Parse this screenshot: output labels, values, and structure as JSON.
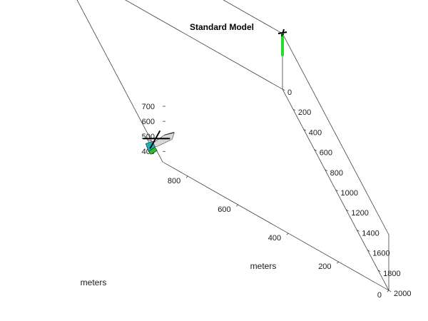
{
  "chart_data": {
    "type": "line3d",
    "title": "Standard Model",
    "xlabel": "meters",
    "ylabel": "meters",
    "zlabel": "",
    "xlim": [
      0,
      2000
    ],
    "ylim": [
      0,
      900
    ],
    "zlim": [
      330,
      700
    ],
    "x_ticks": [
      "0",
      "200",
      "400",
      "600",
      "800",
      "1000",
      "1200",
      "1400",
      "1600",
      "1800",
      "2000"
    ],
    "y_ticks": [
      "0",
      "200",
      "400",
      "600",
      "800"
    ],
    "z_ticks": [
      "400",
      "500",
      "600",
      "700"
    ],
    "grid": false,
    "series": [
      {
        "color": "#22dd22",
        "marker": "square",
        "points": [
          {
            "x": 0,
            "y": 0,
            "z": 700
          },
          {
            "x": 0,
            "y": 0,
            "z": 690
          },
          {
            "x": 0,
            "y": 0,
            "z": 680
          },
          {
            "x": 0,
            "y": 0,
            "z": 670
          },
          {
            "x": 0,
            "y": 0,
            "z": 660
          },
          {
            "x": 0,
            "y": 0,
            "z": 650
          },
          {
            "x": 0,
            "y": 0,
            "z": 640
          },
          {
            "x": 0,
            "y": 0,
            "z": 630
          },
          {
            "x": 0,
            "y": 0,
            "z": 620
          },
          {
            "x": 0,
            "y": 0,
            "z": 610
          },
          {
            "x": 0,
            "y": 0,
            "z": 600
          },
          {
            "x": 0,
            "y": 0,
            "z": 590
          },
          {
            "x": 0,
            "y": 0,
            "z": 580
          },
          {
            "x": 0,
            "y": 0,
            "z": 570
          },
          {
            "x": 0,
            "y": 0,
            "z": 560
          }
        ]
      }
    ],
    "models": [
      {
        "type": "helicopter",
        "x": 0,
        "y": 0,
        "z": 700,
        "scale": "small"
      },
      {
        "type": "helicopter",
        "x": 1950,
        "y": 900,
        "z": 390,
        "scale": "large"
      }
    ]
  }
}
